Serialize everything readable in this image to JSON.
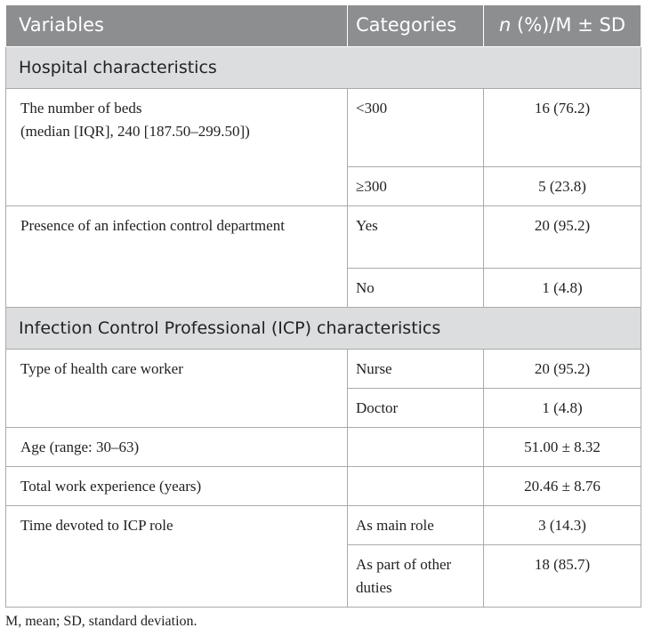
{
  "header": {
    "variables": "Variables",
    "categories": "Categories",
    "n_label": "n",
    "stats_label": " (%)/M ± SD"
  },
  "sections": [
    {
      "title": "Hospital characteristics"
    },
    {
      "title": "Infection Control Professional (ICP) characteristics"
    }
  ],
  "rows": {
    "beds": {
      "label_line1": "The number of beds",
      "label_line2": "(median [IQR], 240 [187.50–299.50])",
      "cat1": "<300",
      "val1": "16 (76.2)",
      "cat2": "≥300",
      "val2": "5 (23.8)"
    },
    "icd": {
      "label": "Presence of an infection control department",
      "cat1": "Yes",
      "val1": "20 (95.2)",
      "cat2": "No",
      "val2": "1 (4.8)"
    },
    "hcw": {
      "label": "Type of health care worker",
      "cat1": "Nurse",
      "val1": "20 (95.2)",
      "cat2": "Doctor",
      "val2": "1 (4.8)"
    },
    "age": {
      "label": "Age (range: 30–63)",
      "cat": "",
      "val": "51.00 ± 8.32"
    },
    "work": {
      "label": "Total work experience (years)",
      "cat": "",
      "val": "20.46 ± 8.76"
    },
    "time": {
      "label": "Time devoted to ICP role",
      "cat1": "As main role",
      "val1": "3 (14.3)",
      "cat2": "As part of other duties",
      "val2": "18 (85.7)"
    }
  },
  "footnote": "M, mean; SD, standard deviation."
}
